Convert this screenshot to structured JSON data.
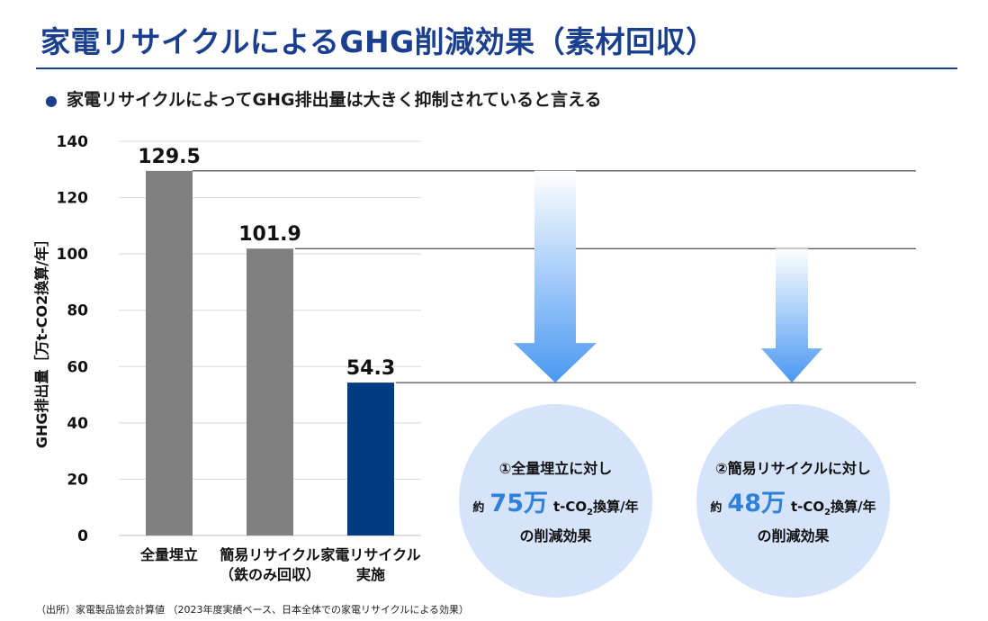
{
  "slide": {
    "title": "家電リサイクルによるGHG削減効果（素材回収）",
    "bullet": "家電リサイクルによってGHG排出量は大きく抑制されていると言える",
    "bullet_icon": "filled-circle-bullet",
    "source": "（出所）家電製品協会計算値 （2023年度実績ベース、日本全体での家電リサイクルによる効果）"
  },
  "chart_data": {
    "type": "bar",
    "ylabel": "GHG排出量［万t-CO2換算/年］",
    "ylim": [
      0,
      140
    ],
    "yticks": [
      0,
      20,
      40,
      60,
      80,
      100,
      120,
      140
    ],
    "grid": true,
    "categories": [
      [
        "全量埋立"
      ],
      [
        "簡易リサイクル",
        "（鉄のみ回収）"
      ],
      [
        "家電リサイクル",
        "実施"
      ]
    ],
    "values": [
      129.5,
      101.9,
      54.3
    ],
    "value_labels": [
      "129.5",
      "101.9",
      "54.3"
    ],
    "colors": [
      "#808080",
      "#808080",
      "#003c82"
    ]
  },
  "callouts": [
    {
      "line1": "①全量埋立に対し",
      "prefix": "約",
      "amount": "75万",
      "unit_main": "t-CO",
      "unit_sub": "2",
      "unit_rest": "換算/年",
      "line3": "の削減効果",
      "arrow_from": 129.5,
      "arrow_to": 54.3
    },
    {
      "line1": "②簡易リサイクルに対し",
      "prefix": "約",
      "amount": "48万",
      "unit_main": "t-CO",
      "unit_sub": "2",
      "unit_rest": "換算/年",
      "line3": "の削減効果",
      "arrow_from": 101.9,
      "arrow_to": 54.3
    }
  ],
  "colors": {
    "title": "#1b3f8f",
    "accent": "#2f80d8",
    "circle": "#d6e4fb",
    "arrow_top": "#ffffff",
    "arrow_bottom": "#4a98f2"
  }
}
